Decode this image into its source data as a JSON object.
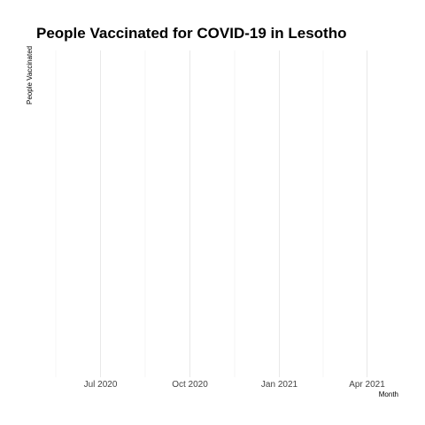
{
  "chart_data": {
    "type": "line",
    "title": "People Vaccinated for COVID-19 in Lesotho",
    "xlabel": "Month",
    "ylabel": "People Vaccinated",
    "x_tick_labels": [
      "Jul 2020",
      "Oct 2020",
      "Jan 2021",
      "Apr 2021"
    ],
    "series": [],
    "grid": true,
    "legend": "none"
  }
}
